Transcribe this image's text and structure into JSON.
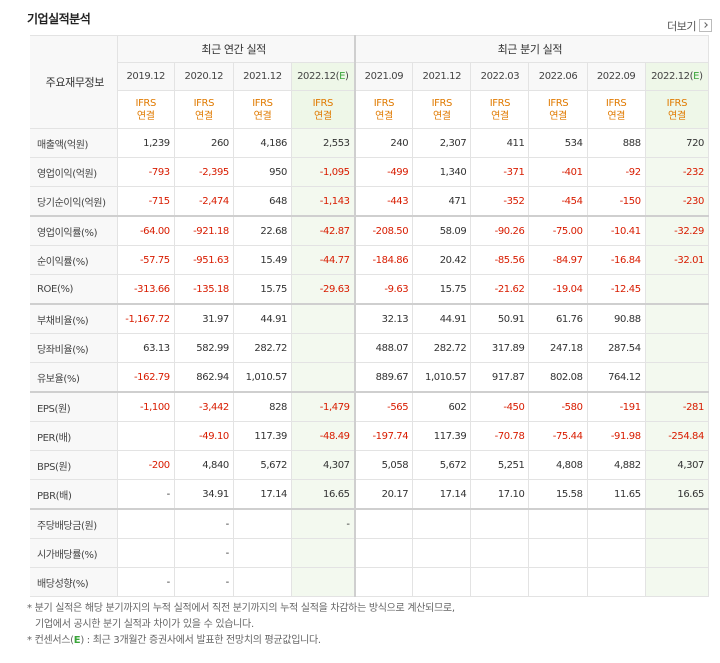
{
  "title": "기업실적분석",
  "more_label": "더보기",
  "header": {
    "side_label": "주요재무정보",
    "annual_group": "최근 연간 실적",
    "quarter_group": "최근 분기 실적",
    "annual_periods": [
      "2019.12",
      "2020.12",
      "2021.12",
      "2022.12(E)"
    ],
    "quarter_periods": [
      "2021.09",
      "2021.12",
      "2022.03",
      "2022.06",
      "2022.09",
      "2022.12(E)"
    ],
    "basis_line1": "IFRS",
    "basis_line2": "연결"
  },
  "rows": [
    {
      "label": "매출액(억원)",
      "values": [
        "1,239",
        "260",
        "4,186",
        "2,553",
        "240",
        "2,307",
        "411",
        "534",
        "888",
        "720"
      ]
    },
    {
      "label": "영업이익(억원)",
      "values": [
        "-793",
        "-2,395",
        "950",
        "-1,095",
        "-499",
        "1,340",
        "-371",
        "-401",
        "-92",
        "-232"
      ]
    },
    {
      "label": "당기순이익(억원)",
      "values": [
        "-715",
        "-2,474",
        "648",
        "-1,143",
        "-443",
        "471",
        "-352",
        "-454",
        "-150",
        "-230"
      ]
    },
    {
      "label": "영업이익률(%)",
      "values": [
        "-64.00",
        "-921.18",
        "22.68",
        "-42.87",
        "-208.50",
        "58.09",
        "-90.26",
        "-75.00",
        "-10.41",
        "-32.29"
      ]
    },
    {
      "label": "순이익률(%)",
      "values": [
        "-57.75",
        "-951.63",
        "15.49",
        "-44.77",
        "-184.86",
        "20.42",
        "-85.56",
        "-84.97",
        "-16.84",
        "-32.01"
      ]
    },
    {
      "label": "ROE(%)",
      "values": [
        "-313.66",
        "-135.18",
        "15.75",
        "-29.63",
        "-9.63",
        "15.75",
        "-21.62",
        "-19.04",
        "-12.45",
        ""
      ]
    },
    {
      "label": "부채비율(%)",
      "values": [
        "-1,167.72",
        "31.97",
        "44.91",
        "",
        "32.13",
        "44.91",
        "50.91",
        "61.76",
        "90.88",
        ""
      ]
    },
    {
      "label": "당좌비율(%)",
      "values": [
        "63.13",
        "582.99",
        "282.72",
        "",
        "488.07",
        "282.72",
        "317.89",
        "247.18",
        "287.54",
        ""
      ]
    },
    {
      "label": "유보율(%)",
      "values": [
        "-162.79",
        "862.94",
        "1,010.57",
        "",
        "889.67",
        "1,010.57",
        "917.87",
        "802.08",
        "764.12",
        ""
      ]
    },
    {
      "label": "EPS(원)",
      "values": [
        "-1,100",
        "-3,442",
        "828",
        "-1,479",
        "-565",
        "602",
        "-450",
        "-580",
        "-191",
        "-281"
      ]
    },
    {
      "label": "PER(배)",
      "values": [
        "",
        "-49.10",
        "117.39",
        "-48.49",
        "-197.74",
        "117.39",
        "-70.78",
        "-75.44",
        "-91.98",
        "-254.84"
      ]
    },
    {
      "label": "BPS(원)",
      "values": [
        "-200",
        "4,840",
        "5,672",
        "4,307",
        "5,058",
        "5,672",
        "5,251",
        "4,808",
        "4,882",
        "4,307"
      ]
    },
    {
      "label": "PBR(배)",
      "values": [
        "-",
        "34.91",
        "17.14",
        "16.65",
        "20.17",
        "17.14",
        "17.10",
        "15.58",
        "11.65",
        "16.65"
      ]
    },
    {
      "label": "주당배당금(원)",
      "values": [
        "",
        "-",
        "",
        "-",
        "",
        "",
        "",
        "",
        "",
        ""
      ]
    },
    {
      "label": "시가배당률(%)",
      "values": [
        "",
        "-",
        "",
        "",
        "",
        "",
        "",
        "",
        "",
        ""
      ]
    },
    {
      "label": "배당성향(%)",
      "values": [
        "-",
        "-",
        "",
        "",
        "",
        "",
        "",
        "",
        "",
        ""
      ]
    }
  ],
  "notes": {
    "line1": "* 분기 실적은 해당 분기까지의 누적 실적에서 직전 분기까지의 누적 실적을 차감하는 방식으로 계산되므로,",
    "line2": "기업에서 공시한 분기 실적과 차이가 있을 수 있습니다.",
    "line3_prefix": "* 컨센서스(",
    "line3_e": "E",
    "line3_suffix": ") : 최근 3개월간 증권사에서 발표한 전망치의 평균값입니다."
  },
  "colors": {
    "negative": "#d81c00",
    "ifrs": "#e07a00",
    "estimate_bg": "#f3f9ef",
    "estimate_mark": "#3aa53a"
  }
}
